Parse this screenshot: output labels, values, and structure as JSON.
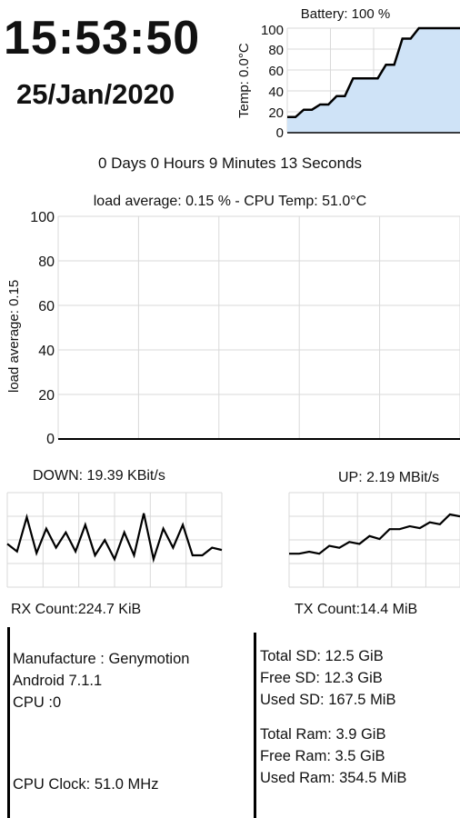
{
  "clock": {
    "time": "15:53:50",
    "date": "25/Jan/2020"
  },
  "battery_chart": {
    "title": "Battery: 100 %",
    "ylabel": "Temp: 0.0°C",
    "ticks": [
      "100",
      "80",
      "60",
      "40",
      "20",
      "0"
    ],
    "fill_color": "#cfe3f7"
  },
  "uptime": "0 Days 0 Hours 9 Minutes 13 Seconds",
  "cpu_chart": {
    "title": "load average: 0.15  %  - CPU Temp: 51.0°C",
    "ylabel": "load average: 0.15",
    "ticks": [
      "100",
      "80",
      "60",
      "40",
      "20",
      "0"
    ]
  },
  "network": {
    "down_label": "DOWN: 19.39 KBit/s",
    "up_label": "UP: 2.19 MBit/s",
    "rx_count": "RX Count:224.7 KiB",
    "tx_count": "TX Count:14.4 MiB"
  },
  "device": {
    "manufacturer": "Manufacture : Genymotion",
    "android": "Android 7.1.1",
    "cpu": "CPU :0",
    "cpu_clock": "CPU Clock: 51.0 MHz"
  },
  "storage": {
    "total_sd": "Total SD: 12.5 GiB",
    "free_sd": "Free SD:  12.3 GiB",
    "used_sd": "Used SD:  167.5 MiB",
    "total_ram": "Total Ram: 3.9 GiB",
    "free_ram": "Free Ram:  3.5 GiB",
    "used_ram": "Used Ram:  354.5 MiB"
  },
  "chart_data": [
    {
      "type": "area",
      "title": "Battery: 100 %",
      "ylabel": "Temp: 0.0°C",
      "ylim": [
        0,
        100
      ],
      "x": [
        0,
        1,
        2,
        3,
        4,
        5,
        6,
        7,
        8,
        9,
        10,
        11,
        12,
        13,
        14,
        15,
        16,
        17,
        18,
        19,
        20,
        21
      ],
      "values": [
        15,
        15,
        22,
        22,
        27,
        27,
        35,
        35,
        52,
        52,
        52,
        52,
        65,
        65,
        90,
        90,
        100,
        100,
        100,
        100,
        100,
        100
      ]
    },
    {
      "type": "line",
      "title": "load average: 0.15  %  - CPU Temp: 51.0°C",
      "ylabel": "load average: 0.15",
      "ylim": [
        0,
        100
      ],
      "values": [
        0,
        0,
        0,
        0,
        0,
        0,
        0,
        0,
        0,
        0
      ]
    },
    {
      "type": "line",
      "title": "DOWN: 19.39 KBit/s",
      "values": [
        40,
        30,
        75,
        28,
        60,
        35,
        55,
        30,
        65,
        25,
        45,
        20,
        55,
        25,
        80,
        20,
        60,
        35,
        65,
        25,
        25,
        35,
        32
      ]
    },
    {
      "type": "line",
      "title": "UP: 2.19 MBit/s",
      "values": [
        10,
        10,
        12,
        10,
        18,
        16,
        22,
        20,
        28,
        25,
        35,
        35,
        38,
        36,
        42,
        40,
        50,
        48
      ]
    }
  ]
}
